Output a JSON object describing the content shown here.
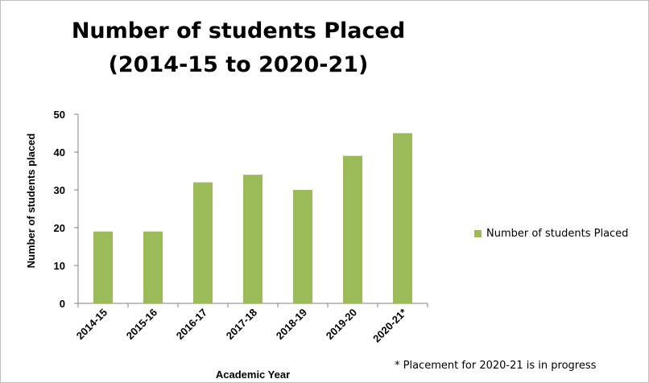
{
  "chart_data": {
    "type": "bar",
    "title_lines": [
      "Number of students Placed",
      "(2014-15 to 2020-21)"
    ],
    "xlabel": "Academic Year",
    "ylabel": "Number of students placed",
    "categories": [
      "2014-15",
      "2015-16",
      "2016-17",
      "2017-18",
      "2018-19",
      "2019-20",
      "2020-21*"
    ],
    "series": [
      {
        "name": "Number of students Placed",
        "values": [
          19,
          19,
          32,
          34,
          30,
          39,
          45
        ]
      }
    ],
    "ylim": [
      0,
      50
    ],
    "yticks": [
      0,
      10,
      20,
      30,
      40,
      50
    ],
    "grid": false,
    "legend_position": "right",
    "bar_color": "#9bbb59",
    "annotation": "* Placement for 2020-21 is in progress"
  }
}
